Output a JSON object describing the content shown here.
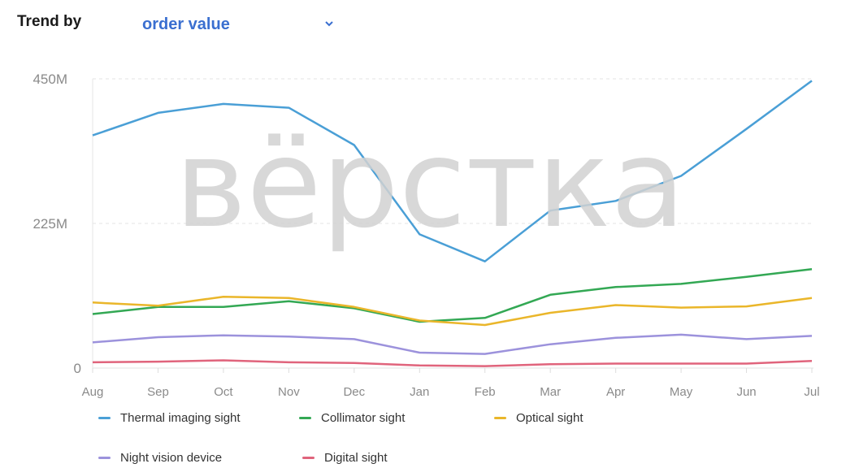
{
  "header": {
    "trend_label": "Trend by",
    "metric_selected": "order value",
    "chevron_icon": "chevron-down-icon"
  },
  "watermark": "вёрстка",
  "chart_data": {
    "type": "line",
    "categories": [
      "Aug",
      "Sep",
      "Oct",
      "Nov",
      "Dec",
      "Jan",
      "Feb",
      "Mar",
      "Apr",
      "May",
      "Jun",
      "Jul"
    ],
    "y_ticks": [
      {
        "value": 0,
        "label": "0"
      },
      {
        "value": 225,
        "label": "225M"
      },
      {
        "value": 450,
        "label": "450M"
      }
    ],
    "ylim": [
      0,
      450
    ],
    "y_unit": "M",
    "grid": "horizontal-dashed",
    "legend_position": "bottom",
    "series": [
      {
        "name": "Thermal imaging sight",
        "color": "#4a9fd6",
        "values": [
          362,
          397,
          411,
          405,
          347,
          208,
          166,
          245,
          260,
          299,
          372,
          447
        ]
      },
      {
        "name": "Collimator sight",
        "color": "#33a854",
        "values": [
          84,
          95,
          95,
          104,
          93,
          72,
          78,
          114,
          126,
          131,
          142,
          154
        ]
      },
      {
        "name": "Optical sight",
        "color": "#eab62a",
        "values": [
          102,
          97,
          111,
          109,
          95,
          74,
          67,
          86,
          98,
          94,
          96,
          109
        ]
      },
      {
        "name": "Night vision device",
        "color": "#9c92dc",
        "values": [
          40,
          48,
          51,
          49,
          45,
          24,
          22,
          37,
          47,
          52,
          45,
          50
        ]
      },
      {
        "name": "Digital sight",
        "color": "#e0647c",
        "values": [
          9,
          10,
          12,
          9,
          8,
          4,
          3,
          6,
          7,
          7,
          7,
          11
        ]
      }
    ]
  }
}
